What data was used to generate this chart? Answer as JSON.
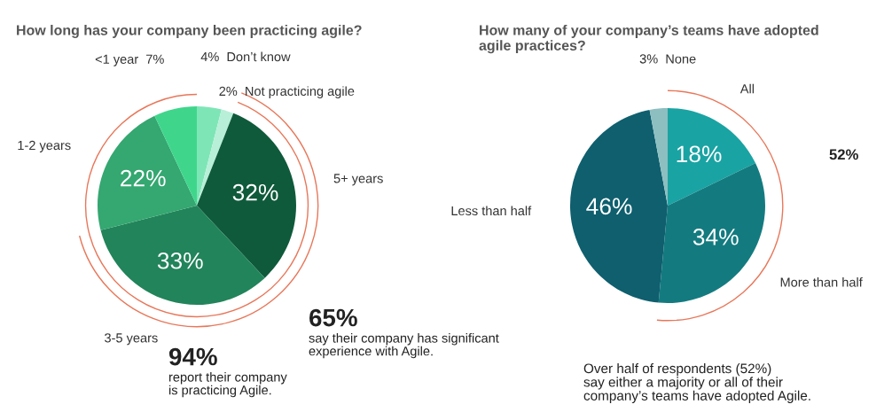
{
  "chart_data": [
    {
      "type": "pie",
      "title": "How long has your company been practicing agile?",
      "categories": [
        "Don’t know",
        "Not practicing agile",
        "5+ years",
        "3-5 years",
        "1-2 years",
        "<1 year"
      ],
      "values": [
        4,
        2,
        32,
        33,
        22,
        7
      ],
      "value_labels": [
        "4%",
        "2%",
        "32%",
        "33%",
        "22%",
        "7%"
      ],
      "colors": [
        "#7ee6b6",
        "#b8efd8",
        "#0f5a3b",
        "#22845a",
        "#35a771",
        "#3fd68c"
      ],
      "annotations": [
        "94%",
        "report their company\nis practicing Agile.",
        "65%",
        "say their company has significant\nexperience with Agile."
      ]
    },
    {
      "type": "pie",
      "title": "How many of your company’s teams have adopted\nagile practices?",
      "categories": [
        "All",
        "More than half",
        "Less than half",
        "None"
      ],
      "values": [
        18,
        34,
        46,
        3
      ],
      "value_labels": [
        "18%",
        "34%",
        "46%",
        "3%"
      ],
      "colors": [
        "#1aa3a3",
        "#137b80",
        "#0f5f6e",
        "#8dbfc0"
      ],
      "annotations": [
        "52%",
        "Over half of respondents (52%)\nsay either a majority or all of their\ncompany’s teams have adopted Agile."
      ]
    }
  ]
}
